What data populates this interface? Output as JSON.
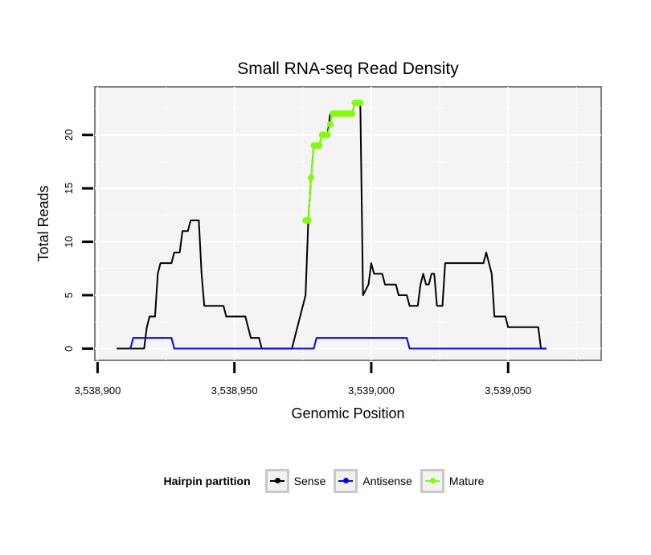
{
  "chart_data": {
    "type": "line",
    "title": "Small RNA-seq Read Density",
    "xlabel": "Genomic Position",
    "ylabel": "Total Reads",
    "xlim": [
      3538899,
      3539084
    ],
    "ylim": [
      -1.1,
      24.5
    ],
    "x_ticks": [
      3538900,
      3538950,
      3539000,
      3539050
    ],
    "x_tick_labels": [
      "3,538,900",
      "3,538,950",
      "3,539,000",
      "3,539,050"
    ],
    "y_ticks": [
      0,
      5,
      10,
      15,
      20
    ],
    "y_tick_labels": [
      "0",
      "5",
      "10",
      "15",
      "20"
    ],
    "grid": true,
    "legend_title": "Hairpin partition",
    "series": [
      {
        "name": "Sense",
        "color": "#000000",
        "points": [
          [
            3538907,
            0
          ],
          [
            3538917,
            0
          ],
          [
            3538918,
            2
          ],
          [
            3538919,
            3
          ],
          [
            3538921,
            3
          ],
          [
            3538922,
            7
          ],
          [
            3538923,
            8
          ],
          [
            3538927,
            8
          ],
          [
            3538928,
            9
          ],
          [
            3538930,
            9
          ],
          [
            3538931,
            11
          ],
          [
            3538933,
            11
          ],
          [
            3538934,
            12
          ],
          [
            3538937,
            12
          ],
          [
            3538938,
            7
          ],
          [
            3538939,
            4
          ],
          [
            3538946,
            4
          ],
          [
            3538947,
            3
          ],
          [
            3538954,
            3
          ],
          [
            3538956,
            1
          ],
          [
            3538959,
            1
          ],
          [
            3538960,
            0
          ],
          [
            3538971,
            0
          ],
          [
            3538974,
            3
          ],
          [
            3538976,
            5
          ],
          [
            3538977,
            12
          ],
          [
            3538978,
            16
          ],
          [
            3538979,
            19
          ],
          [
            3538981,
            19
          ],
          [
            3538982,
            20
          ],
          [
            3538984,
            20
          ],
          [
            3538985,
            22
          ],
          [
            3538993,
            22
          ],
          [
            3538994,
            23
          ],
          [
            3538996,
            23
          ],
          [
            3538997,
            5
          ],
          [
            3538999,
            6
          ],
          [
            3539000,
            8
          ],
          [
            3539001,
            7
          ],
          [
            3539004,
            7
          ],
          [
            3539005,
            6
          ],
          [
            3539009,
            6
          ],
          [
            3539010,
            5
          ],
          [
            3539013,
            5
          ],
          [
            3539014,
            4
          ],
          [
            3539017,
            4
          ],
          [
            3539018,
            6
          ],
          [
            3539019,
            7
          ],
          [
            3539020,
            6
          ],
          [
            3539021,
            6
          ],
          [
            3539022,
            7
          ],
          [
            3539023,
            7
          ],
          [
            3539024,
            4
          ],
          [
            3539026,
            4
          ],
          [
            3539027,
            8
          ],
          [
            3539041,
            8
          ],
          [
            3539042,
            9
          ],
          [
            3539044,
            7
          ],
          [
            3539045,
            3
          ],
          [
            3539049,
            3
          ],
          [
            3539050,
            2
          ],
          [
            3539061,
            2
          ],
          [
            3539062,
            0
          ],
          [
            3539064,
            0
          ]
        ]
      },
      {
        "name": "Antisense",
        "color": "#0000ff",
        "points": [
          [
            3538912,
            0
          ],
          [
            3538913,
            1
          ],
          [
            3538927,
            1
          ],
          [
            3538928,
            0
          ],
          [
            3538979,
            0
          ],
          [
            3538980,
            1
          ],
          [
            3539013,
            1
          ],
          [
            3539014,
            0
          ],
          [
            3539064,
            0
          ]
        ]
      },
      {
        "name": "Mature",
        "color": "#7fff00",
        "points": [
          [
            3538976,
            12
          ],
          [
            3538977,
            12
          ],
          [
            3538978,
            16
          ],
          [
            3538979,
            19
          ],
          [
            3538980,
            19
          ],
          [
            3538981,
            19
          ],
          [
            3538982,
            20
          ],
          [
            3538983,
            20
          ],
          [
            3538984,
            20
          ],
          [
            3538985,
            21
          ],
          [
            3538986,
            22
          ],
          [
            3538987,
            22
          ],
          [
            3538988,
            22
          ],
          [
            3538989,
            22
          ],
          [
            3538990,
            22
          ],
          [
            3538991,
            22
          ],
          [
            3538992,
            22
          ],
          [
            3538993,
            22
          ],
          [
            3538994,
            23
          ],
          [
            3538995,
            23
          ],
          [
            3538996,
            23
          ]
        ]
      }
    ]
  }
}
